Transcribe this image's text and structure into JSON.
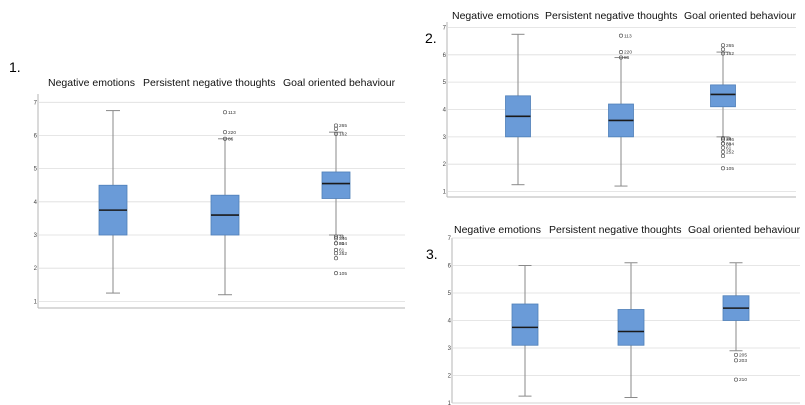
{
  "chart_data": [
    {
      "panel_label": "1.",
      "type": "box",
      "categories": [
        "Negative emotions",
        "Persistent negative thoughts",
        "Goal oriented behaviour"
      ],
      "y_ticks": [
        "1",
        "2",
        "3",
        "4",
        "5",
        "6",
        "7"
      ],
      "ylim": [
        0.8,
        7.25
      ],
      "grid": true,
      "box_color": "#6a9bd8",
      "boxes": [
        {
          "min": 1.25,
          "q1": 3.0,
          "median": 3.75,
          "q3": 4.5,
          "max": 6.75,
          "outliers": []
        },
        {
          "min": 1.2,
          "q1": 3.0,
          "median": 3.6,
          "q3": 4.2,
          "max": 5.9,
          "outliers": [
            {
              "value": 6.7,
              "label": "113"
            },
            {
              "value": 6.1,
              "label": "220"
            },
            {
              "value": 5.9,
              "label": "86"
            }
          ]
        },
        {
          "min": 3.0,
          "q1": 4.1,
          "median": 4.55,
          "q3": 4.9,
          "max": 6.1,
          "outliers": [
            {
              "value": 6.3,
              "label": "265"
            },
            {
              "value": 6.2,
              "label": ""
            },
            {
              "value": 6.05,
              "label": "162"
            },
            {
              "value": 2.95,
              "label": "36"
            },
            {
              "value": 2.9,
              "label": "346"
            },
            {
              "value": 2.75,
              "label": "314"
            },
            {
              "value": 2.75,
              "label": "60"
            },
            {
              "value": 2.55,
              "label": "61"
            },
            {
              "value": 2.45,
              "label": "252"
            },
            {
              "value": 2.3,
              "label": ""
            },
            {
              "value": 1.85,
              "label": "105"
            }
          ]
        }
      ]
    },
    {
      "panel_label": "2.",
      "type": "box",
      "categories": [
        "Negative emotions",
        "Persistent negative thoughts",
        "Goal oriented behaviour"
      ],
      "y_ticks": [
        "1",
        "2",
        "3",
        "4",
        "5",
        "6",
        "7"
      ],
      "ylim": [
        0.8,
        7.2
      ],
      "grid": true,
      "box_color": "#6a9bd8",
      "boxes": [
        {
          "min": 1.25,
          "q1": 3.0,
          "median": 3.75,
          "q3": 4.5,
          "max": 6.75,
          "outliers": []
        },
        {
          "min": 1.2,
          "q1": 3.0,
          "median": 3.6,
          "q3": 4.2,
          "max": 5.9,
          "outliers": [
            {
              "value": 6.7,
              "label": "113"
            },
            {
              "value": 6.1,
              "label": "220"
            },
            {
              "value": 5.9,
              "label": "86"
            }
          ]
        },
        {
          "min": 3.0,
          "q1": 4.1,
          "median": 4.55,
          "q3": 4.9,
          "max": 6.1,
          "outliers": [
            {
              "value": 6.35,
              "label": "265"
            },
            {
              "value": 6.2,
              "label": ""
            },
            {
              "value": 6.05,
              "label": "162"
            },
            {
              "value": 2.95,
              "label": "36"
            },
            {
              "value": 2.9,
              "label": "346"
            },
            {
              "value": 2.75,
              "label": "314"
            },
            {
              "value": 2.75,
              "label": "60"
            },
            {
              "value": 2.6,
              "label": "61"
            },
            {
              "value": 2.45,
              "label": "252"
            },
            {
              "value": 2.3,
              "label": ""
            },
            {
              "value": 1.85,
              "label": "105"
            }
          ]
        }
      ]
    },
    {
      "panel_label": "3.",
      "type": "box",
      "categories": [
        "Negative emotions",
        "Persistent negative thoughts",
        "Goal oriented behaviour"
      ],
      "y_ticks": [
        "1",
        "2",
        "3",
        "4",
        "5",
        "6",
        "7"
      ],
      "ylim": [
        1.0,
        7.0
      ],
      "grid": true,
      "box_color": "#6a9bd8",
      "boxes": [
        {
          "min": 1.25,
          "q1": 3.1,
          "median": 3.75,
          "q3": 4.6,
          "max": 6.0,
          "outliers": []
        },
        {
          "min": 1.2,
          "q1": 3.1,
          "median": 3.6,
          "q3": 4.4,
          "max": 6.1,
          "outliers": []
        },
        {
          "min": 2.9,
          "q1": 4.0,
          "median": 4.45,
          "q3": 4.9,
          "max": 6.1,
          "outliers": [
            {
              "value": 2.75,
              "label": "205"
            },
            {
              "value": 2.55,
              "label": "203"
            },
            {
              "value": 1.85,
              "label": "210"
            }
          ]
        }
      ]
    }
  ]
}
